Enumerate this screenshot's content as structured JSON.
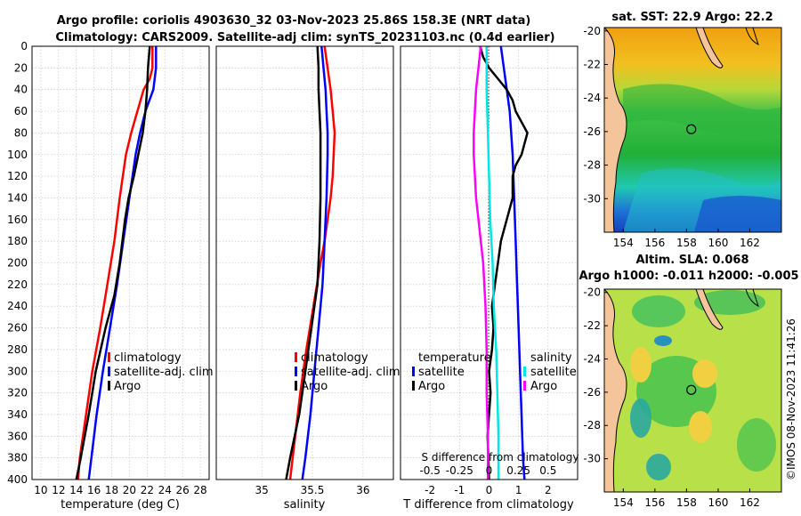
{
  "header": {
    "line1": "Argo profile: coriolis 4903630_32 03-Nov-2023 25.86S 158.3E (NRT data)",
    "line2": "Climatology: CARS2009. Satellite-adj clim: synTS_20231103.nc (0.4d earlier)"
  },
  "colors": {
    "climatology": "#ff0000",
    "satellite": "#0000ff",
    "argo": "#000000",
    "salinity_sat": "#00e5e5",
    "salinity_argo": "#ff00ff",
    "land": "#f4c49a",
    "grid": "#c0c0c0"
  },
  "depth_ticks": [
    0,
    20,
    40,
    60,
    80,
    100,
    120,
    140,
    160,
    180,
    200,
    220,
    240,
    260,
    280,
    300,
    320,
    340,
    360,
    380,
    400
  ],
  "chart_data": [
    {
      "type": "line",
      "name": "temperature",
      "xlabel": "temperature (deg C)",
      "ylabel": "",
      "xlim": [
        9,
        29
      ],
      "ylim": [
        400,
        0
      ],
      "xticks": [
        "10",
        "12",
        "14",
        "16",
        "18",
        "20",
        "22",
        "24",
        "26",
        "28"
      ],
      "xtick_values": [
        10,
        12,
        14,
        16,
        18,
        20,
        22,
        24,
        26,
        28
      ],
      "grid": true,
      "legend": [
        "climatology",
        "satellite-adj. clim",
        "Argo"
      ],
      "series": [
        {
          "name": "climatology",
          "color": "#ff0000",
          "depth": [
            0,
            20,
            30,
            40,
            60,
            80,
            100,
            140,
            180,
            220,
            260,
            300,
            340,
            380,
            400
          ],
          "values": [
            22.6,
            22.6,
            22.3,
            21.6,
            20.9,
            20.2,
            19.6,
            18.9,
            18.3,
            17.5,
            16.7,
            15.8,
            15.1,
            14.4,
            14.2
          ]
        },
        {
          "name": "satellite-adj. clim",
          "color": "#0000ff",
          "depth": [
            0,
            20,
            40,
            60,
            80,
            100,
            140,
            180,
            220,
            260,
            300,
            340,
            380,
            400
          ],
          "values": [
            23.0,
            23.0,
            22.7,
            21.8,
            21.2,
            20.7,
            20.0,
            19.3,
            18.6,
            17.8,
            17.0,
            16.3,
            15.7,
            15.4
          ]
        },
        {
          "name": "Argo",
          "color": "#000000",
          "depth": [
            0,
            20,
            40,
            60,
            80,
            100,
            120,
            140,
            160,
            180,
            200,
            230,
            260,
            300,
            340,
            380,
            400
          ],
          "values": [
            22.3,
            22.1,
            22.0,
            21.8,
            21.5,
            21.0,
            20.5,
            19.9,
            19.5,
            19.2,
            18.9,
            18.3,
            17.3,
            16.2,
            15.4,
            14.5,
            14.0
          ]
        }
      ]
    },
    {
      "type": "line",
      "name": "salinity",
      "xlabel": "salinity",
      "ylabel": "",
      "xlim": [
        34.55,
        36.3
      ],
      "ylim": [
        400,
        0
      ],
      "xticks": [
        "35",
        "35.5",
        "36"
      ],
      "xtick_values": [
        35,
        35.5,
        36
      ],
      "grid": true,
      "legend": [
        "climatology",
        "satellite-adj. clim",
        "Argo"
      ],
      "series": [
        {
          "name": "climatology",
          "color": "#ff0000",
          "depth": [
            0,
            20,
            40,
            60,
            80,
            100,
            120,
            140,
            160,
            180,
            200,
            240,
            280,
            320,
            360,
            400
          ],
          "values": [
            35.62,
            35.65,
            35.68,
            35.7,
            35.72,
            35.71,
            35.7,
            35.68,
            35.65,
            35.62,
            35.58,
            35.51,
            35.44,
            35.38,
            35.33,
            35.28
          ]
        },
        {
          "name": "satellite-adj. clim",
          "color": "#0000ff",
          "depth": [
            0,
            20,
            40,
            60,
            80,
            100,
            140,
            180,
            220,
            260,
            300,
            340,
            380,
            400
          ],
          "values": [
            35.59,
            35.61,
            35.63,
            35.64,
            35.65,
            35.65,
            35.64,
            35.62,
            35.6,
            35.56,
            35.52,
            35.48,
            35.43,
            35.4
          ]
        },
        {
          "name": "Argo",
          "color": "#000000",
          "depth": [
            0,
            20,
            40,
            60,
            80,
            100,
            140,
            180,
            220,
            260,
            300,
            340,
            380,
            400
          ],
          "values": [
            35.55,
            35.56,
            35.56,
            35.57,
            35.58,
            35.58,
            35.58,
            35.57,
            35.55,
            35.49,
            35.43,
            35.37,
            35.28,
            35.24
          ]
        }
      ]
    },
    {
      "type": "line",
      "name": "difference from climatology",
      "xlabel": "T difference from climatology",
      "xlabel_top": "S difference from climatology",
      "xlim": [
        -3,
        3
      ],
      "ylim": [
        400,
        0
      ],
      "xticks": [
        "-2",
        "-1",
        "0",
        "1",
        "2"
      ],
      "xtick_values": [
        -2,
        -1,
        0,
        1,
        2
      ],
      "s_xticks": [
        "-0.5",
        "-0.25",
        "0",
        "0.25",
        "0.5"
      ],
      "s_xtick_values": [
        -0.5,
        -0.25,
        0,
        0.25,
        0.5
      ],
      "s_xlim": [
        -0.75,
        0.75
      ],
      "grid": true,
      "legend_temperature_title": "temperature",
      "legend_salinity_title": "salinity",
      "legend_temperature": [
        "satellite",
        "Argo"
      ],
      "legend_salinity": [
        "satellite",
        "Argo"
      ],
      "series": [
        {
          "name": "T satellite",
          "color": "#0000ff",
          "axis": "T",
          "depth": [
            0,
            20,
            40,
            60,
            100,
            140,
            180,
            220,
            260,
            300,
            340,
            380,
            400
          ],
          "values": [
            0.4,
            0.5,
            0.6,
            0.7,
            0.8,
            0.85,
            0.9,
            0.95,
            1.0,
            1.05,
            1.1,
            1.15,
            1.2
          ]
        },
        {
          "name": "T Argo",
          "color": "#000000",
          "axis": "T",
          "depth": [
            0,
            10,
            20,
            30,
            40,
            50,
            60,
            70,
            80,
            90,
            100,
            110,
            120,
            140,
            160,
            180,
            200,
            220,
            240,
            260,
            280,
            300,
            320,
            340,
            360,
            380,
            400
          ],
          "values": [
            -0.3,
            -0.2,
            0.0,
            0.3,
            0.6,
            0.8,
            0.9,
            1.1,
            1.3,
            1.2,
            1.1,
            0.9,
            0.8,
            0.8,
            0.6,
            0.4,
            0.3,
            0.2,
            0.1,
            0.15,
            0.1,
            0.0,
            0.05,
            0.0,
            -0.05,
            -0.02,
            0.0
          ]
        },
        {
          "name": "S satellite",
          "color": "#00e5e5",
          "axis": "S",
          "depth": [
            0,
            40,
            80,
            120,
            160,
            200,
            240,
            280,
            320,
            360,
            400
          ],
          "values": [
            -0.02,
            -0.02,
            -0.01,
            0.0,
            0.01,
            0.03,
            0.04,
            0.06,
            0.07,
            0.08,
            0.08
          ]
        },
        {
          "name": "S Argo",
          "color": "#ff00ff",
          "axis": "S",
          "depth": [
            0,
            20,
            40,
            60,
            80,
            100,
            120,
            140,
            160,
            180,
            200,
            240,
            280,
            320,
            360,
            400
          ],
          "values": [
            -0.07,
            -0.09,
            -0.11,
            -0.12,
            -0.13,
            -0.13,
            -0.12,
            -0.11,
            -0.09,
            -0.07,
            -0.05,
            -0.03,
            -0.02,
            -0.02,
            -0.01,
            -0.01
          ]
        }
      ]
    }
  ],
  "maps": [
    {
      "title": "sat. SST: 22.9 Argo: 22.2",
      "xticks": [
        "154",
        "156",
        "158",
        "160",
        "162"
      ],
      "xtick_values": [
        154,
        156,
        158,
        160,
        162
      ],
      "yticks": [
        "-20",
        "-22",
        "-24",
        "-26",
        "-28",
        "-30"
      ],
      "ytick_values": [
        -20,
        -22,
        -24,
        -26,
        -28,
        -30
      ],
      "lon": [
        152.8,
        164.0
      ],
      "lat": [
        -32.0,
        -19.8
      ],
      "argo_lon": 158.3,
      "argo_lat": -25.86
    },
    {
      "title": "Altim. SLA: 0.068",
      "subtitle": "Argo h1000: -0.011 h2000: -0.005",
      "xticks": [
        "154",
        "156",
        "158",
        "160",
        "162"
      ],
      "xtick_values": [
        154,
        156,
        158,
        160,
        162
      ],
      "yticks": [
        "-20",
        "-22",
        "-24",
        "-26",
        "-28",
        "-30"
      ],
      "ytick_values": [
        -20,
        -22,
        -24,
        -26,
        -28,
        -30
      ],
      "lon": [
        152.8,
        164.0
      ],
      "lat": [
        -32.0,
        -19.8
      ],
      "argo_lon": 158.3,
      "argo_lat": -25.86
    }
  ],
  "watermark": "©IMOS 08-Nov-2023 11:41:26"
}
